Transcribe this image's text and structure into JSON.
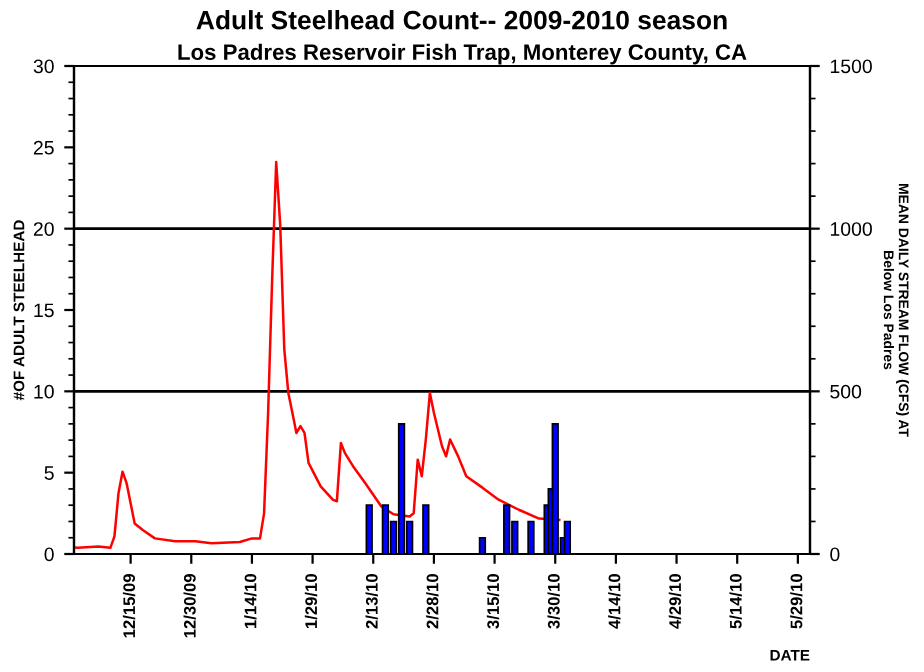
{
  "chart_data": {
    "type": "bar",
    "title": "Adult Steelhead Count-- 2009-2010 season",
    "subtitle": "Los Padres Reservoir Fish Trap, Monterey County, CA",
    "xlabel": "DATE",
    "ylabel": "#OF ADULT STEELHEAD",
    "y2label": "MEAN DAILY STREAM FLOW (CFS) AT\nBelow Los Padres",
    "xlim": [
      "2009-12-01",
      "2010-06-01"
    ],
    "xticks": [
      {
        "value": "2009-12-15",
        "label": "12/15/09"
      },
      {
        "value": "2009-12-30",
        "label": "12/30/09"
      },
      {
        "value": "2010-01-14",
        "label": "1/14/10"
      },
      {
        "value": "2010-01-29",
        "label": "1/29/10"
      },
      {
        "value": "2010-02-13",
        "label": "2/13/10"
      },
      {
        "value": "2010-02-28",
        "label": "2/28/10"
      },
      {
        "value": "2010-03-15",
        "label": "3/15/10"
      },
      {
        "value": "2010-03-30",
        "label": "3/30/10"
      },
      {
        "value": "2010-04-14",
        "label": "4/14/10"
      },
      {
        "value": "2010-04-29",
        "label": "4/29/10"
      },
      {
        "value": "2010-05-14",
        "label": "5/14/10"
      },
      {
        "value": "2010-05-29",
        "label": "5/29/10"
      }
    ],
    "ylim": [
      0,
      30
    ],
    "yticks": [
      0,
      5,
      10,
      15,
      20,
      25,
      30
    ],
    "y2lim": [
      0,
      1500
    ],
    "y2ticks": [
      0,
      500,
      1000,
      1500
    ],
    "ref_lines": [
      {
        "axis": "y2",
        "value": 500,
        "color": "#000000"
      },
      {
        "axis": "y2",
        "value": 1000,
        "color": "#000000"
      }
    ],
    "series": [
      {
        "color": "#0000ff",
        "x": [
          "2010-02-12",
          "2010-02-16",
          "2010-02-18",
          "2010-02-20",
          "2010-02-22",
          "2010-02-26",
          "2010-03-12",
          "2010-03-18",
          "2010-03-20",
          "2010-03-24",
          "2010-03-28",
          "2010-03-29",
          "2010-03-30",
          "2010-04-01",
          "2010-04-02"
        ],
        "values": [
          3,
          3,
          2,
          8,
          2,
          3,
          1,
          3,
          2,
          2,
          3,
          4,
          8,
          1,
          2
        ]
      },
      {
        "type": "line",
        "axis": "y2",
        "color": "#ff0000",
        "x": [
          "2009-12-01",
          "2009-12-02",
          "2009-12-07",
          "2009-12-10",
          "2009-12-11",
          "2009-12-12",
          "2009-12-13",
          "2009-12-14",
          "2009-12-15",
          "2009-12-16",
          "2009-12-18",
          "2009-12-21",
          "2009-12-26",
          "2009-12-31",
          "2010-01-04",
          "2010-01-11",
          "2010-01-14",
          "2010-01-16",
          "2010-01-17",
          "2010-01-18",
          "2010-01-19",
          "2010-01-20",
          "2010-01-21",
          "2010-01-22",
          "2010-01-23",
          "2010-01-24",
          "2010-01-25",
          "2010-01-26",
          "2010-01-27",
          "2010-01-28",
          "2010-01-31",
          "2010-02-03",
          "2010-02-04",
          "2010-02-05",
          "2010-02-06",
          "2010-02-08",
          "2010-02-11",
          "2010-02-15",
          "2010-02-18",
          "2010-02-22",
          "2010-02-23",
          "2010-02-24",
          "2010-02-25",
          "2010-02-26",
          "2010-02-27",
          "2010-02-28",
          "2010-03-02",
          "2010-03-03",
          "2010-03-04",
          "2010-03-06",
          "2010-03-08",
          "2010-03-12",
          "2010-03-16",
          "2010-03-21",
          "2010-03-26",
          "2010-03-31"
        ],
        "values": [
          20,
          19,
          23,
          19,
          54,
          187,
          253,
          218,
          156,
          94,
          74,
          48,
          39,
          39,
          33,
          37,
          48,
          48,
          125,
          434,
          845,
          1205,
          1010,
          629,
          495,
          434,
          372,
          393,
          372,
          280,
          208,
          167,
          162,
          341,
          310,
          270,
          218,
          146,
          122,
          115,
          125,
          290,
          239,
          352,
          495,
          434,
          331,
          300,
          352,
          300,
          239,
          204,
          167,
          136,
          109,
          105
        ]
      }
    ]
  }
}
